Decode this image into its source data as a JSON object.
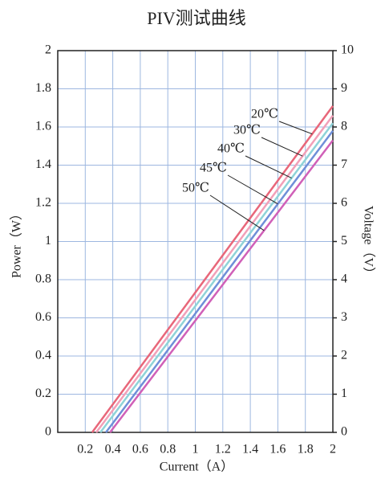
{
  "chart_data": {
    "type": "line",
    "title": "PIV测试曲线",
    "x_label": "Current（A）",
    "y_label": "Power（W）",
    "y2_label": "Voltage（V）",
    "xlim": [
      0,
      2
    ],
    "xticks": [
      0.2,
      0.4,
      0.6,
      0.8,
      1,
      1.2,
      1.4,
      1.6,
      1.8,
      2
    ],
    "ylim": [
      0,
      2
    ],
    "yticks": [
      0,
      0.2,
      0.4,
      0.6,
      0.8,
      1,
      1.2,
      1.4,
      1.6,
      1.8,
      2
    ],
    "y2lim": [
      0,
      10
    ],
    "y2ticks": [
      0,
      1,
      2,
      3,
      4,
      5,
      6,
      7,
      8,
      9,
      10
    ],
    "grid": true,
    "series": [
      {
        "name": "20℃",
        "color": "#e8677a",
        "x": [
          0.25,
          2
        ],
        "values": [
          0,
          1.71
        ]
      },
      {
        "name": "30℃",
        "color": "#f2a0b8",
        "x": [
          0.28,
          2
        ],
        "values": [
          0,
          1.66
        ]
      },
      {
        "name": "40℃",
        "color": "#8fd3d8",
        "x": [
          0.31,
          2
        ],
        "values": [
          0,
          1.62
        ]
      },
      {
        "name": "45℃",
        "color": "#6f8fd8",
        "x": [
          0.35,
          2
        ],
        "values": [
          0,
          1.58
        ]
      },
      {
        "name": "50℃",
        "color": "#d060b8",
        "x": [
          0.38,
          2
        ],
        "values": [
          0,
          1.53
        ]
      }
    ]
  }
}
